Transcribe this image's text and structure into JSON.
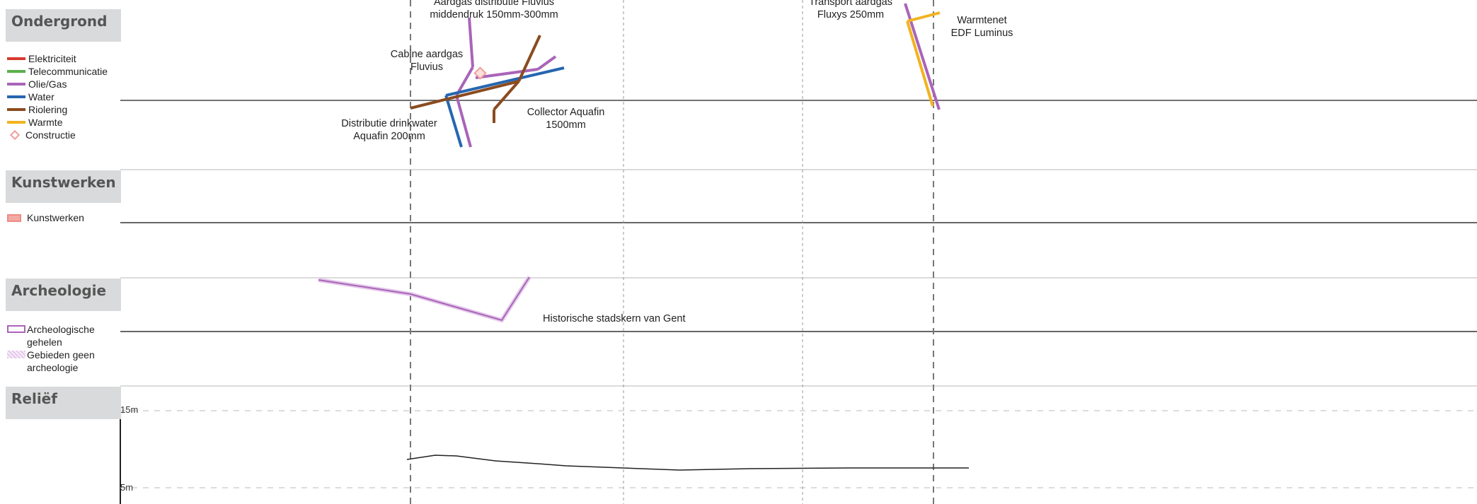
{
  "sections": {
    "ondergrond": {
      "title": "Ondergrond"
    },
    "kunstwerken": {
      "title": "Kunstwerken"
    },
    "archeologie": {
      "title": "Archeologie"
    },
    "relief": {
      "title": "Reliëf"
    }
  },
  "legend_ondergrond": [
    {
      "label": "Elektriciteit",
      "color": "#d63a2f"
    },
    {
      "label": "Telecommunicatie",
      "color": "#5ab04a"
    },
    {
      "label": "Olie/Gas",
      "color": "#a964b8"
    },
    {
      "label": "Water",
      "color": "#2666b0"
    },
    {
      "label": "Riolering",
      "color": "#8a4b1f"
    },
    {
      "label": "Warmte",
      "color": "#f2b320"
    },
    {
      "label": "Constructie",
      "color": "#f0a09a"
    }
  ],
  "legend_kunstwerken": [
    {
      "label": "Kunstwerken",
      "color": "#f3aaa5"
    }
  ],
  "legend_archeologie": [
    {
      "label": "Archeologische gehelen",
      "color": "#a964b8"
    },
    {
      "label": "Gebieden geen archeologie",
      "color": "#e4c8ea"
    }
  ],
  "annotations": {
    "gas_distributie": "Aardgas distributie Fluvius middendruk 150mm-300mm",
    "cabine": "Cabine aardgas Fluvius",
    "drinkwater": "Distributie drinkwater Aquafin 200mm",
    "collector": "Collector Aquafin 1500mm",
    "transport_gas": "Transport aardgas Fluxys 250mm",
    "warmtenet": "Warmtenet EDF Luminus",
    "historisch": "Historische stadskern van Gent"
  },
  "relief_axis": {
    "top_label": "15m",
    "bottom_label": "5m"
  }
}
